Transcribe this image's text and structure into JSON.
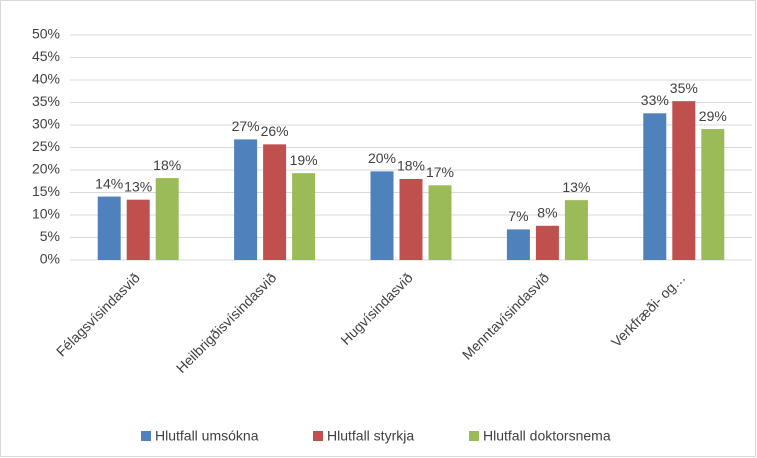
{
  "chart_data": {
    "type": "bar",
    "categories": [
      "Félagsvísindasvið",
      "Heilbrigðisvísindasvið",
      "Hugvísindasvið",
      "Menntavísindasvið",
      "Verkfræði- og…"
    ],
    "series": [
      {
        "name": "Hlutfall umsókna",
        "color": "#4f81bd",
        "values": [
          14.1,
          26.8,
          19.7,
          6.8,
          32.6
        ],
        "value_labels": [
          "14%",
          "27%",
          "20%",
          "7%",
          "33%"
        ]
      },
      {
        "name": "Hlutfall styrkja",
        "color": "#c0504d",
        "values": [
          13.4,
          25.7,
          18.0,
          7.6,
          35.3
        ],
        "value_labels": [
          "13%",
          "26%",
          "18%",
          "8%",
          "35%"
        ]
      },
      {
        "name": "Hlutfall doktorsnema",
        "color": "#9bbb59",
        "values": [
          18.2,
          19.3,
          16.6,
          13.3,
          29.1
        ],
        "value_labels": [
          "18%",
          "19%",
          "17%",
          "13%",
          "29%"
        ]
      }
    ],
    "ylim": [
      0,
      50
    ],
    "yticks": [
      {
        "value": 0,
        "label": "0%"
      },
      {
        "value": 5,
        "label": "5%"
      },
      {
        "value": 10,
        "label": "10%"
      },
      {
        "value": 15,
        "label": "15%"
      },
      {
        "value": 20,
        "label": "20%"
      },
      {
        "value": 25,
        "label": "25%"
      },
      {
        "value": 30,
        "label": "30%"
      },
      {
        "value": 35,
        "label": "35%"
      },
      {
        "value": 40,
        "label": "40%"
      },
      {
        "value": 45,
        "label": "45%"
      },
      {
        "value": 50,
        "label": "50%"
      }
    ],
    "grid": true,
    "legend": "bottom"
  }
}
